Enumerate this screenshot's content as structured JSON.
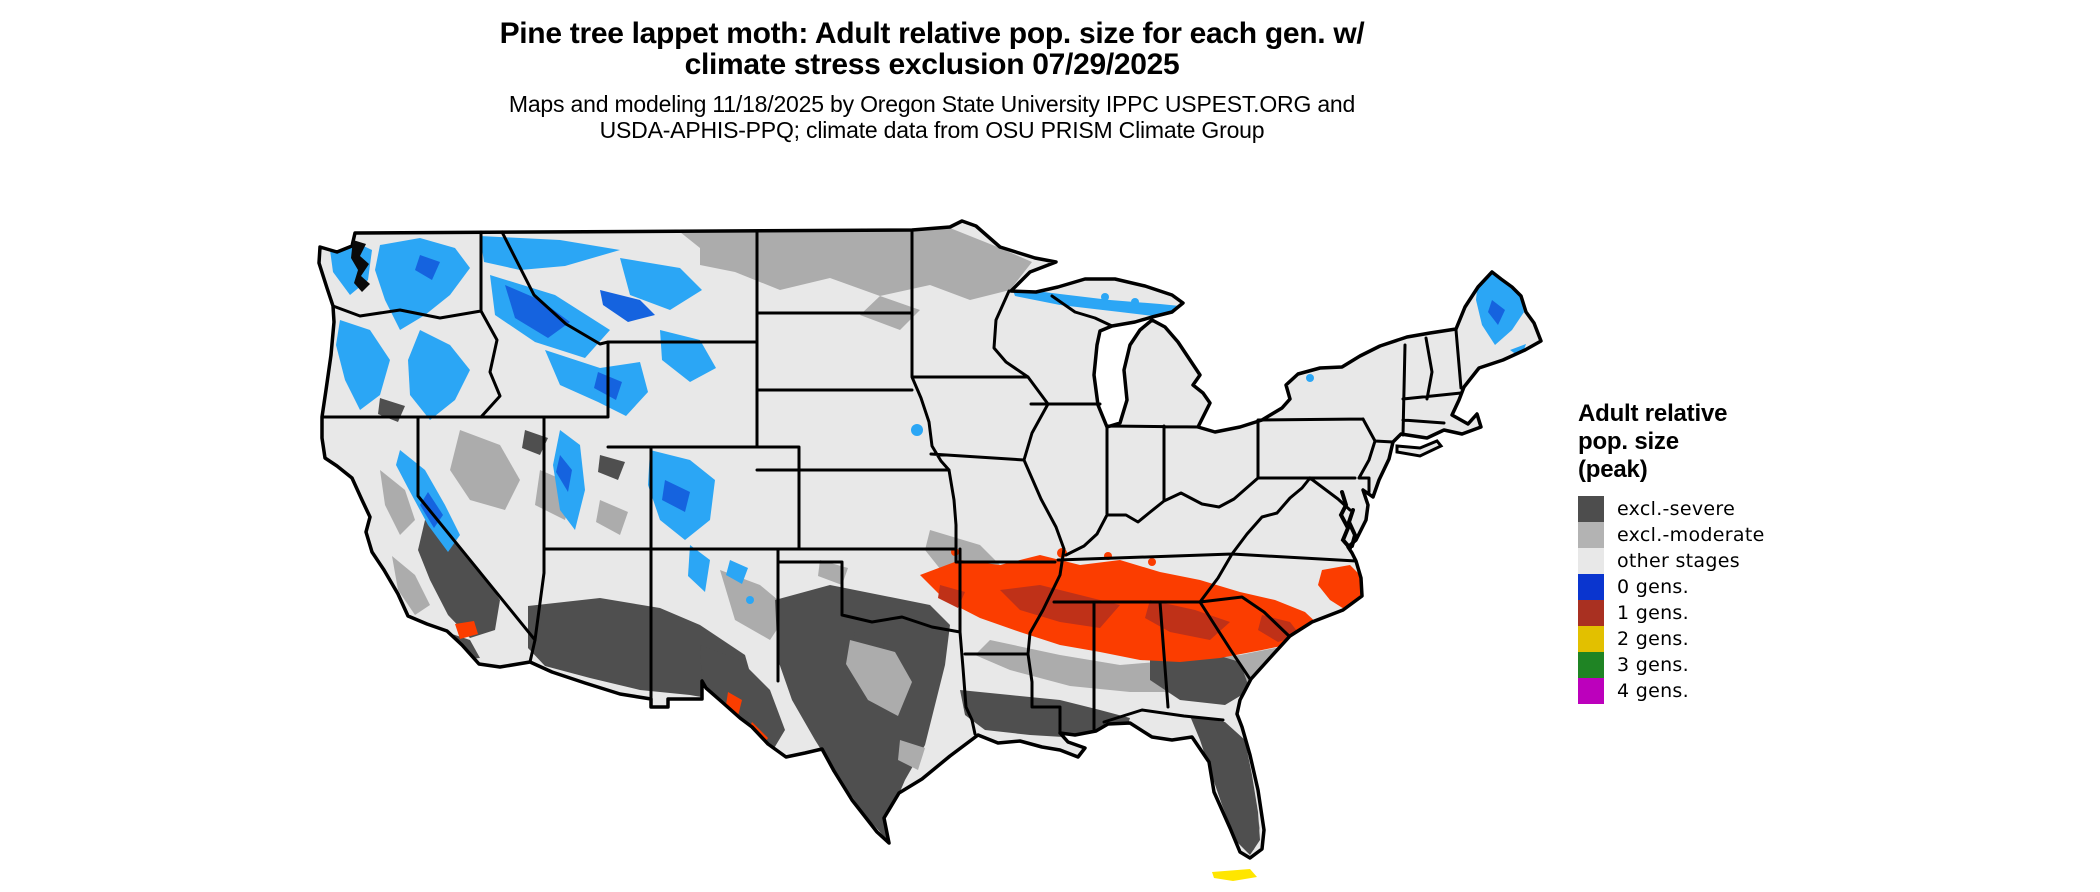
{
  "title": {
    "line1": "Pine tree lappet moth: Adult relative pop. size for each gen. w/",
    "line2": "climate stress exclusion 07/29/2025"
  },
  "subtitle": {
    "line1": "Maps and modeling 11/18/2025 by Oregon State University IPPC USPEST.ORG and",
    "line2": "USDA-APHIS-PPQ; climate data from OSU PRISM Climate Group"
  },
  "legend": {
    "title_lines": [
      "Adult relative",
      "pop. size",
      "(peak)"
    ],
    "items": [
      {
        "label": "excl.-severe",
        "color": "#4D4D4D"
      },
      {
        "label": "excl.-moderate",
        "color": "#B3B3B3"
      },
      {
        "label": "other stages",
        "color": "#E8E8E8"
      },
      {
        "label": "0 gens.",
        "color": "#0A35CF"
      },
      {
        "label": "1 gens.",
        "color": "#A93021"
      },
      {
        "label": "2 gens.",
        "color": "#E2C000"
      },
      {
        "label": "3 gens.",
        "color": "#1F8424"
      },
      {
        "label": "4 gens.",
        "color": "#BC00BC"
      }
    ]
  },
  "map": {
    "type": "raster-choropleth",
    "region": "Contiguous United States with state boundaries",
    "colors": {
      "base": "#E8E8E8",
      "excl_moderate": "#ACACAC",
      "excl_severe": "#4F4F4F",
      "gens0_light": "#2BA6F5",
      "gens0_dark": "#1563DF",
      "gens1_bright": "#FB3D00",
      "gens1_dark": "#BF3118",
      "gens2": "#FFE600",
      "outline": "#000000",
      "water": "#FFFFFF"
    },
    "notable_patterns": [
      "Blue (0 gens.) across Cascades, Sierra Nevada, Idaho/Montana Rockies, Colorado Rockies, Lake Superior shore and northern Maine",
      "Orange/red (1 gens.) belt across the Southeast from east Texas/Oklahoma through Arkansas, Mississippi, Alabama, Georgia to coastal Carolinas; small patch near southern California",
      "Dark gray (excl.-severe) over southern Arizona, southern California valleys, most of Texas, Gulf coast and Florida peninsula",
      "Medium gray (excl.-moderate) band along northern North Dakota/Minnesota and across the Southeast coastal plain",
      "Yellow (2 gens.) along the Florida Keys"
    ]
  }
}
